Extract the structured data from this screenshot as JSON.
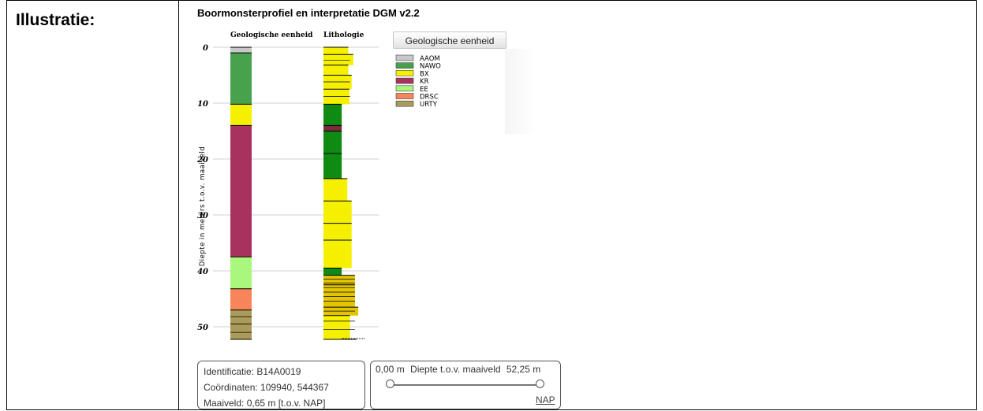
{
  "label": "Illustratie:",
  "title": "Boormonsterprofiel en interpretatie DGM v2.2",
  "colors": {
    "AAOM": "#c8c8c8",
    "NAWO": "#48a14d",
    "BX": "#f5ef00",
    "KR": "#a8325e",
    "EE": "#a9f77c",
    "DRSC": "#f8845a",
    "URTY": "#aa9b5a",
    "green": "#0f8a12",
    "darkred": "#7b2c3a",
    "goldsand": "#e2c400"
  },
  "chart_data": {
    "type": "strip-log",
    "ylabel": "Diepte in meters t.o.v. maaiveld",
    "ylim": [
      0,
      52.25
    ],
    "yticks": [
      0,
      10,
      20,
      30,
      40,
      50
    ],
    "columns": [
      "Geologische eenheid",
      "Lithologie"
    ],
    "legend_button": "Geologische eenheid",
    "legend": [
      "AAOM",
      "NAWO",
      "BX",
      "KR",
      "EE",
      "DRSC",
      "URTY"
    ],
    "geologic_units": [
      {
        "unit": "AAOM",
        "top": 0,
        "bottom": 1
      },
      {
        "unit": "NAWO",
        "top": 1,
        "bottom": 10.2
      },
      {
        "unit": "BX",
        "top": 10.2,
        "bottom": 14
      },
      {
        "unit": "KR",
        "top": 14,
        "bottom": 37.5
      },
      {
        "unit": "EE",
        "top": 37.5,
        "bottom": 43.2
      },
      {
        "unit": "DRSC",
        "top": 43.2,
        "bottom": 47
      },
      {
        "unit": "URTY",
        "top": 47,
        "bottom": 52.25
      }
    ],
    "lithology": [
      {
        "top": 0,
        "bottom": 1.3,
        "color": "BX",
        "width": 0.75,
        "lines": [
          1.3
        ]
      },
      {
        "top": 1.3,
        "bottom": 3.2,
        "color": "BX",
        "width": 0.9
      },
      {
        "top": 3.2,
        "bottom": 5,
        "color": "BX",
        "width": 0.75
      },
      {
        "top": 5,
        "bottom": 7.5,
        "color": "BX",
        "width": 0.85
      },
      {
        "top": 7.5,
        "bottom": 10.2,
        "color": "BX",
        "width": 0.78
      },
      {
        "top": 10.2,
        "bottom": 14,
        "color": "green",
        "width": 0.55
      },
      {
        "top": 14,
        "bottom": 15,
        "color": "darkred",
        "width": 0.55
      },
      {
        "top": 15,
        "bottom": 19,
        "color": "green",
        "width": 0.55
      },
      {
        "top": 19,
        "bottom": 23.5,
        "color": "green",
        "width": 0.55
      },
      {
        "top": 23.5,
        "bottom": 27.5,
        "color": "BX",
        "width": 0.72
      },
      {
        "top": 27.5,
        "bottom": 31.5,
        "color": "BX",
        "width": 0.85
      },
      {
        "top": 31.5,
        "bottom": 34.5,
        "color": "BX",
        "width": 0.85
      },
      {
        "top": 34.5,
        "bottom": 39.5,
        "color": "BX",
        "width": 0.85
      },
      {
        "top": 39.5,
        "bottom": 40.8,
        "color": "green",
        "width": 0.55
      },
      {
        "top": 40.8,
        "bottom": 42.5,
        "color": "goldsand",
        "width": 0.95
      },
      {
        "top": 42.5,
        "bottom": 46.5,
        "color": "goldsand",
        "width": 0.95
      },
      {
        "top": 46.5,
        "bottom": 48,
        "color": "goldsand",
        "width": 1.05
      },
      {
        "top": 48,
        "bottom": 52.25,
        "color": "BX",
        "width": 0.8
      }
    ]
  },
  "info": {
    "identificatie": "Identificatie: B14A0019",
    "coordinaten": "Coördinaten: 109940, 544367",
    "maaiveld": "Maaiveld: 0,65 m [t.o.v. NAP]"
  },
  "depth_control": {
    "min_value": "0,00 m",
    "label": "Diepte t.o.v. maaiveld",
    "max_value": "52,25 m",
    "nap_label": "NAP",
    "range": [
      0,
      1
    ]
  }
}
